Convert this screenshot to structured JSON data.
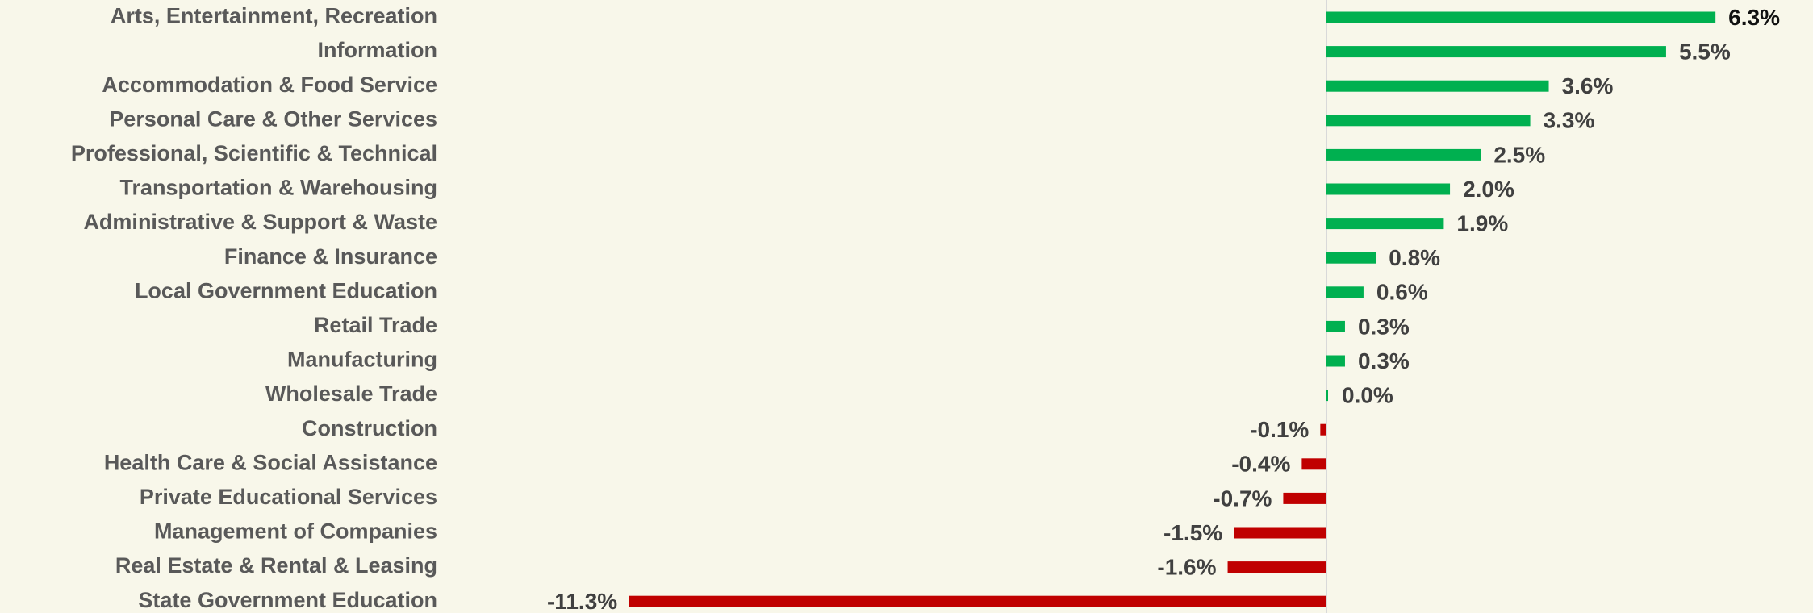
{
  "chart_data": {
    "type": "bar",
    "orientation": "horizontal",
    "categories": [
      "Arts, Entertainment, Recreation",
      "Information",
      "Accommodation & Food Service",
      "Personal Care & Other Services",
      "Professional, Scientific & Technical",
      "Transportation & Warehousing",
      "Administrative & Support & Waste",
      "Finance & Insurance",
      "Local Government Education",
      "Retail Trade",
      "Manufacturing",
      "Wholesale Trade",
      "Construction",
      "Health Care & Social Assistance",
      "Private Educational Services",
      "Management of Companies",
      "Real Estate & Rental & Leasing",
      "State Government Education"
    ],
    "values": [
      6.3,
      5.5,
      3.6,
      3.3,
      2.5,
      2.0,
      1.9,
      0.8,
      0.6,
      0.3,
      0.3,
      0.0,
      -0.1,
      -0.4,
      -0.7,
      -1.5,
      -1.6,
      -11.3
    ],
    "value_labels": [
      "6.3%",
      "5.5%",
      "3.6%",
      "3.3%",
      "2.5%",
      "2.0%",
      "1.9%",
      "0.8%",
      "0.6%",
      "0.3%",
      "0.3%",
      "0.0%",
      "-0.1%",
      "-0.4%",
      "-0.7%",
      "-1.5%",
      "-1.6%",
      "-11.3%"
    ],
    "positive_color": "#00b050",
    "negative_color": "#c00000"
  }
}
